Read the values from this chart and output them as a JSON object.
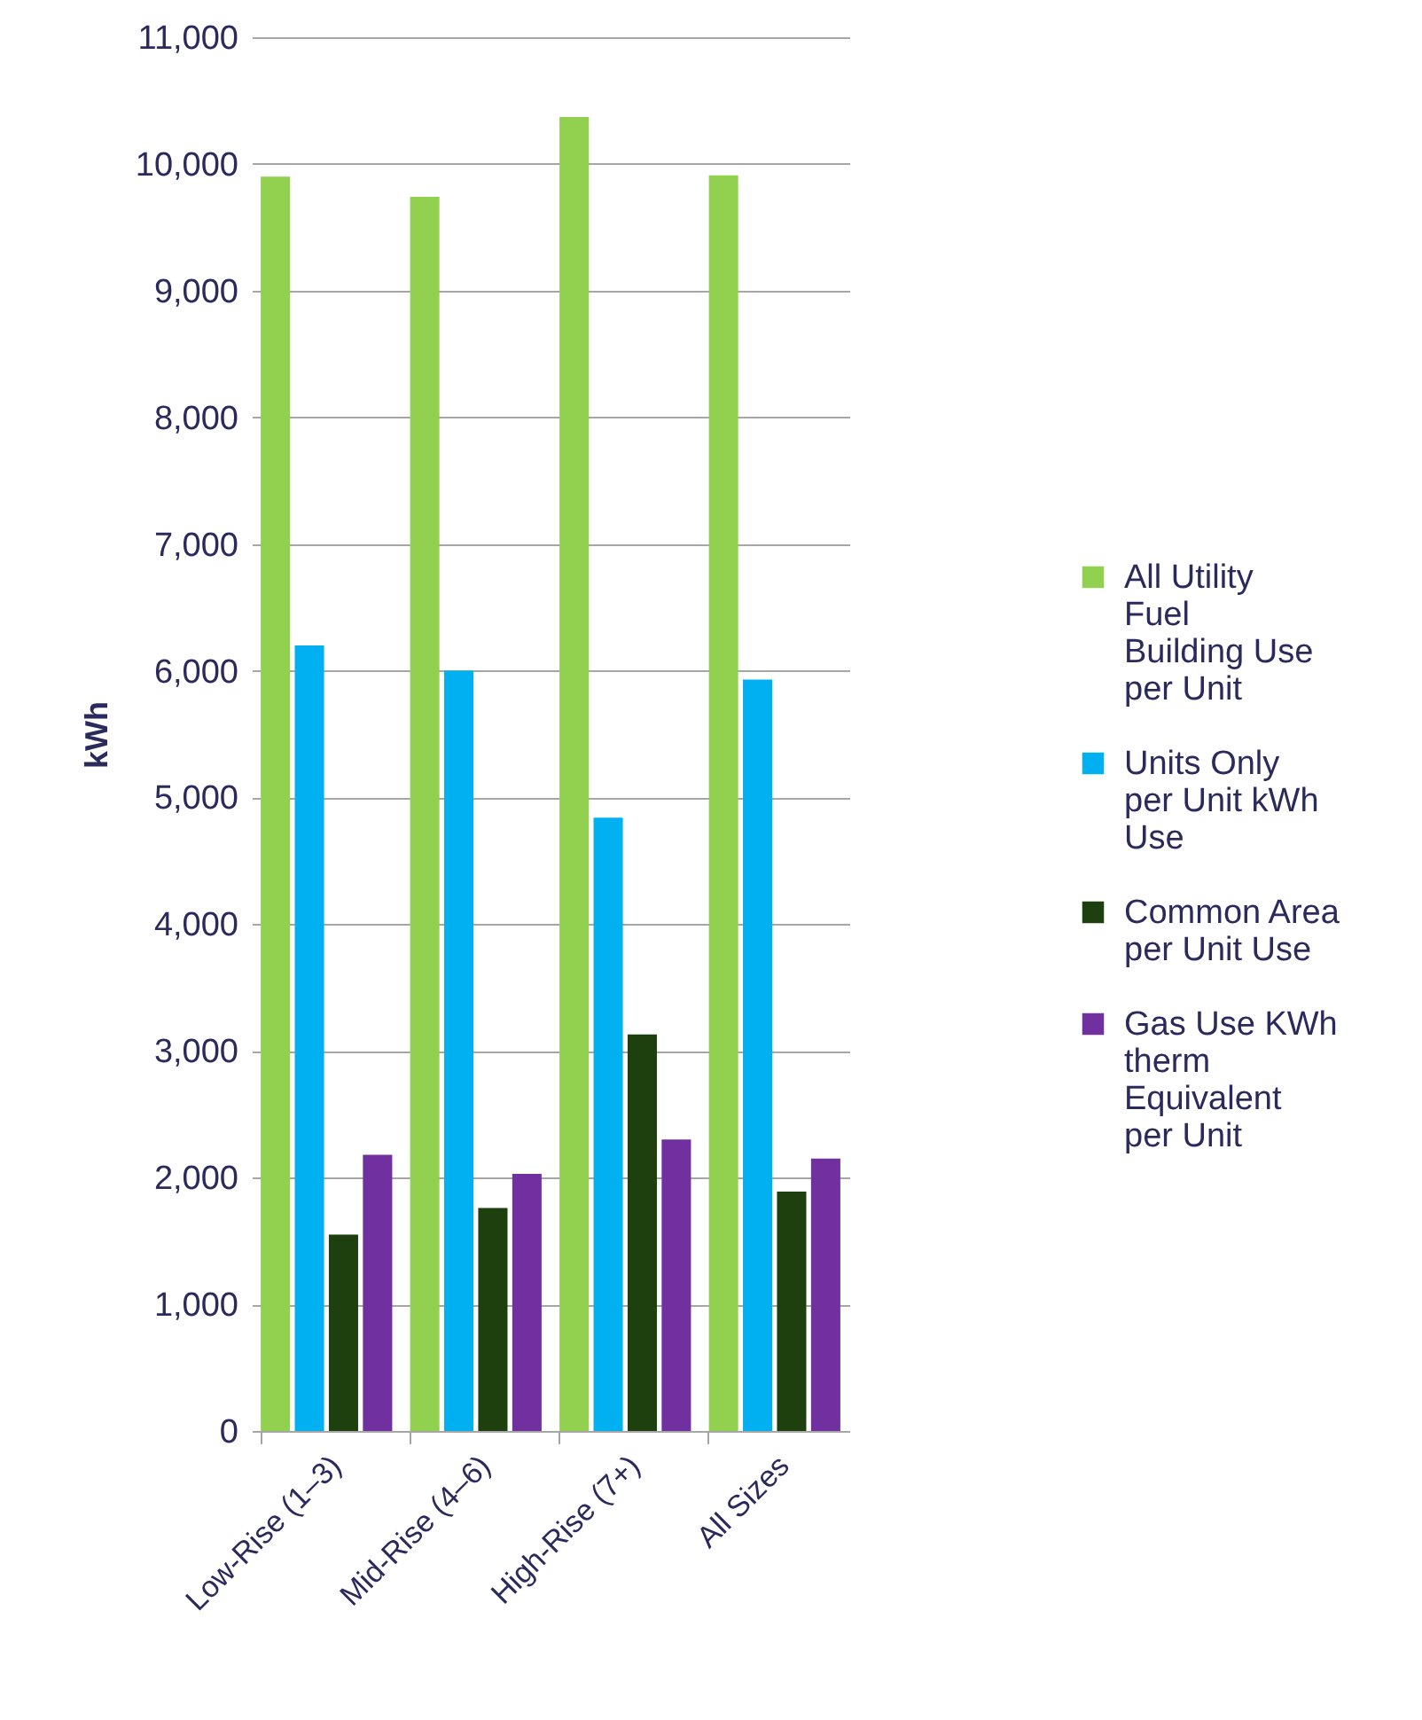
{
  "chart_data": {
    "type": "bar",
    "ylabel": "kWh",
    "categories": [
      "Low-Rise (1–3)",
      "Mid-Rise (4–6)",
      "High-Rise (7+)",
      "All Sizes"
    ],
    "series": [
      {
        "name": "All Utility Fuel Building Use per Unit",
        "color": "#92d050",
        "values": [
          9900,
          9740,
          10370,
          9910
        ]
      },
      {
        "name": "Units Only per Unit kWh Use",
        "color": "#00b0f0",
        "values": [
          6200,
          6000,
          4840,
          5930
        ]
      },
      {
        "name": "Common Area per Unit Use",
        "color": "#1e3f0e",
        "values": [
          1550,
          1760,
          3130,
          1890
        ]
      },
      {
        "name": "Gas Use KWh therm Equivalent per Unit",
        "color": "#7030a0",
        "values": [
          2180,
          2030,
          2300,
          2150
        ]
      }
    ],
    "ylim": [
      0,
      11000
    ],
    "yticks": [
      0,
      {
        "value": 1000,
        "label": "1,000"
      },
      {
        "value": 2000,
        "label": "2,000"
      },
      {
        "value": 3000,
        "label": "3,000"
      },
      {
        "value": 4000,
        "label": "4,000"
      },
      {
        "value": 5000,
        "label": "5,000"
      },
      {
        "value": 6000,
        "label": "6,000"
      },
      {
        "value": 7000,
        "label": "7,000"
      },
      {
        "value": 8000,
        "label": "8,000"
      },
      {
        "value": 9000,
        "label": "9,000"
      },
      {
        "value": 10000,
        "label": "10,000"
      },
      {
        "value": 11000,
        "label": "11,000"
      }
    ],
    "grid": "y",
    "legend": "right"
  }
}
